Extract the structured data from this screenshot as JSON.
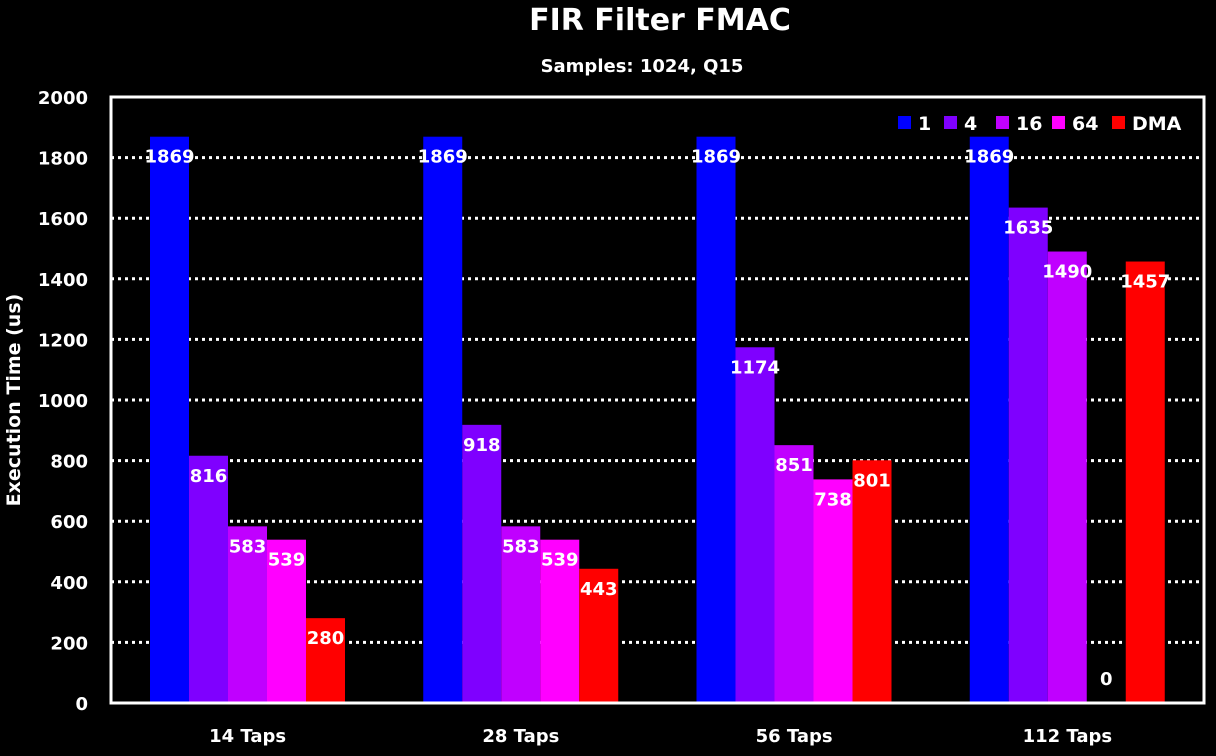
{
  "chart_data": {
    "type": "bar",
    "title": "FIR Filter FMAC",
    "subtitle": "Samples: 1024, Q15",
    "xlabel": "",
    "ylabel": "Execution Time (us)",
    "ylim": [
      0,
      2000
    ],
    "yticks": [
      0,
      200,
      400,
      600,
      800,
      1000,
      1200,
      1400,
      1600,
      1800,
      2000
    ],
    "grid": true,
    "legend_position": "top-right",
    "categories": [
      "14 Taps",
      "28 Taps",
      "56 Taps",
      "112 Taps"
    ],
    "series": [
      {
        "name": "1",
        "color": "#0000ff",
        "values": [
          1869,
          1869,
          1869,
          1869
        ]
      },
      {
        "name": "4",
        "color": "#7f00ff",
        "values": [
          816,
          918,
          1174,
          1635
        ]
      },
      {
        "name": "16",
        "color": "#c000ff",
        "values": [
          583,
          583,
          851,
          1490
        ]
      },
      {
        "name": "64",
        "color": "#ff00ff",
        "values": [
          539,
          539,
          738,
          0
        ]
      },
      {
        "name": "DMA",
        "color": "#ff0000",
        "values": [
          280,
          443,
          801,
          1457
        ]
      }
    ],
    "colors": {
      "background": "#000000",
      "text": "#ffffff",
      "grid": "#ffffff",
      "frame": "#ffffff"
    }
  }
}
